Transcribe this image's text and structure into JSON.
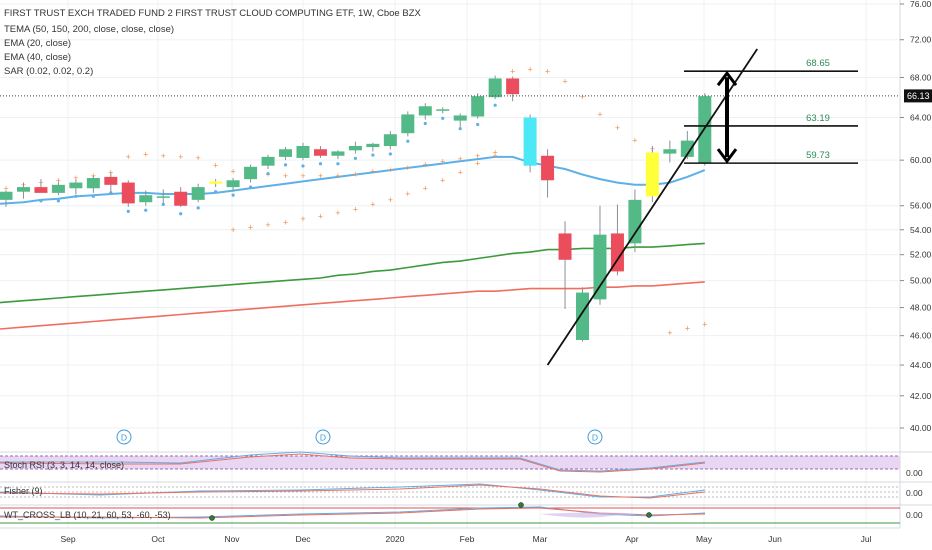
{
  "header": {
    "title": "FIRST TRUST EXCH TRADED FUND 2 FIRST TRUST CLOUD COMPUTING ETF, 1W, Cboe BZX",
    "indicators": [
      "TEMA (50, 150, 200, close, close, close)",
      "EMA (20, close)",
      "EMA (40, close)",
      "SAR (0.02, 0.02, 0.2)"
    ]
  },
  "price_axis": {
    "ticks": [
      "76.00",
      "72.00",
      "68.00",
      "64.00",
      "60.00",
      "56.00",
      "54.00",
      "52.00",
      "50.00",
      "48.00",
      "46.00",
      "44.00",
      "42.00",
      "40.00"
    ],
    "last_price": "66.13"
  },
  "time_axis": {
    "labels": [
      "Sep",
      "Oct",
      "Nov",
      "Dec",
      "2020",
      "Feb",
      "Mar",
      "Apr",
      "May",
      "Jun",
      "Jul"
    ]
  },
  "annotations": {
    "levels": [
      {
        "label": "68.65",
        "value": 68.65
      },
      {
        "label": "63.19",
        "value": 63.19
      },
      {
        "label": "59.73",
        "value": 59.73
      }
    ],
    "dividends": [
      "D",
      "D",
      "D"
    ]
  },
  "panes": [
    {
      "label": "Stoch RSI (3, 3, 14, 14, close)",
      "value": "0.00"
    },
    {
      "label": "Fisher (9)",
      "value": "0.00"
    },
    {
      "label": "WT_CROSS_LB (10, 21, 60, 53, -60, -53)",
      "value": "0.00"
    }
  ],
  "colors": {
    "up": "#53b987",
    "down": "#eb4d5c",
    "highlight_down": "#4de8f5",
    "highlight_up": "#ffff3a",
    "ema20": "#5db0e8",
    "ema40": "#3c9a3c",
    "ema_long": "#ef6f5f",
    "sar": "#f0904a"
  },
  "chart_data": {
    "type": "candlestick",
    "title": "FIRST TRUST EXCH TRADED FUND 2 FIRST TRUST CLOUD COMPUTING ETF, 1W, Cboe BZX",
    "y_scale": "log",
    "ylim": [
      39.0,
      77.0
    ],
    "candles": [
      {
        "o": 56.5,
        "h": 57.3,
        "l": 55.9,
        "c": 57.2
      },
      {
        "o": 57.2,
        "h": 58.0,
        "l": 56.6,
        "c": 57.6
      },
      {
        "o": 57.6,
        "h": 58.3,
        "l": 57.2,
        "c": 57.1
      },
      {
        "o": 57.1,
        "h": 58.1,
        "l": 56.9,
        "c": 57.8
      },
      {
        "o": 57.5,
        "h": 58.3,
        "l": 57.0,
        "c": 58.0
      },
      {
        "o": 57.5,
        "h": 58.6,
        "l": 57.1,
        "c": 58.4
      },
      {
        "o": 58.5,
        "h": 58.9,
        "l": 57.1,
        "c": 57.8
      },
      {
        "o": 58.0,
        "h": 58.2,
        "l": 55.9,
        "c": 56.2
      },
      {
        "o": 56.3,
        "h": 57.3,
        "l": 56.0,
        "c": 56.9
      },
      {
        "o": 56.8,
        "h": 57.4,
        "l": 56.2,
        "c": 56.8
      },
      {
        "o": 57.2,
        "h": 57.6,
        "l": 55.9,
        "c": 56.0
      },
      {
        "o": 56.5,
        "h": 57.9,
        "l": 56.3,
        "c": 57.6
      },
      {
        "o": 57.9,
        "h": 58.3,
        "l": 57.6,
        "c": 58.1,
        "hl": "yellow"
      },
      {
        "o": 57.6,
        "h": 58.4,
        "l": 57.2,
        "c": 58.2
      },
      {
        "o": 58.3,
        "h": 59.6,
        "l": 58.0,
        "c": 59.4
      },
      {
        "o": 59.5,
        "h": 60.5,
        "l": 59.2,
        "c": 60.3
      },
      {
        "o": 60.3,
        "h": 61.2,
        "l": 60.0,
        "c": 61.0
      },
      {
        "o": 60.2,
        "h": 61.6,
        "l": 60.0,
        "c": 61.3
      },
      {
        "o": 61.0,
        "h": 61.3,
        "l": 60.2,
        "c": 60.4
      },
      {
        "o": 60.4,
        "h": 60.9,
        "l": 60.1,
        "c": 60.8
      },
      {
        "o": 60.9,
        "h": 61.7,
        "l": 60.6,
        "c": 61.3
      },
      {
        "o": 61.2,
        "h": 61.6,
        "l": 60.8,
        "c": 61.5
      },
      {
        "o": 61.3,
        "h": 62.7,
        "l": 61.0,
        "c": 62.4
      },
      {
        "o": 62.5,
        "h": 64.6,
        "l": 62.2,
        "c": 64.3
      },
      {
        "o": 64.2,
        "h": 65.4,
        "l": 63.8,
        "c": 65.1
      },
      {
        "o": 64.7,
        "h": 65.0,
        "l": 64.4,
        "c": 64.8
      },
      {
        "o": 63.7,
        "h": 64.4,
        "l": 63.1,
        "c": 64.2
      },
      {
        "o": 64.1,
        "h": 66.4,
        "l": 63.9,
        "c": 66.1
      },
      {
        "o": 66.0,
        "h": 68.2,
        "l": 65.8,
        "c": 67.9
      },
      {
        "o": 67.9,
        "h": 68.1,
        "l": 65.6,
        "c": 66.3
      },
      {
        "o": 64.0,
        "h": 64.3,
        "l": 58.9,
        "c": 59.5,
        "hl": "cyan"
      },
      {
        "o": 60.4,
        "h": 61.0,
        "l": 56.7,
        "c": 58.2
      },
      {
        "o": 53.7,
        "h": 54.7,
        "l": 47.9,
        "c": 51.6
      },
      {
        "o": 45.7,
        "h": 49.5,
        "l": 45.6,
        "c": 49.1
      },
      {
        "o": 48.6,
        "h": 56.0,
        "l": 48.2,
        "c": 53.6
      },
      {
        "o": 53.7,
        "h": 56.1,
        "l": 50.4,
        "c": 50.7
      },
      {
        "o": 52.9,
        "h": 57.4,
        "l": 52.2,
        "c": 56.5
      },
      {
        "o": 56.8,
        "h": 61.3,
        "l": 56.3,
        "c": 60.7,
        "hl": "yellow"
      },
      {
        "o": 60.6,
        "h": 61.8,
        "l": 59.8,
        "c": 61.0
      },
      {
        "o": 60.3,
        "h": 62.7,
        "l": 60.1,
        "c": 61.8
      },
      {
        "o": 59.7,
        "h": 66.4,
        "l": 59.5,
        "c": 66.1
      }
    ],
    "series": [
      {
        "name": "EMA (20, close)",
        "values": [
          56.2,
          56.3,
          56.5,
          56.6,
          56.8,
          56.9,
          57.0,
          57.1,
          57.1,
          57.0,
          57.0,
          57.0,
          57.1,
          57.3,
          57.5,
          57.7,
          57.9,
          58.1,
          58.3,
          58.5,
          58.7,
          58.9,
          59.1,
          59.3,
          59.5,
          59.7,
          59.9,
          60.1,
          60.3,
          60.3,
          59.8,
          59.5,
          59.2,
          58.7,
          58.3,
          58.0,
          57.8,
          57.8,
          58.0,
          58.5,
          59.1
        ]
      },
      {
        "name": "EMA (40, close)",
        "values": [
          48.4,
          48.5,
          48.6,
          48.7,
          48.8,
          48.9,
          49.0,
          49.1,
          49.2,
          49.3,
          49.4,
          49.5,
          49.6,
          49.7,
          49.8,
          49.9,
          50.0,
          50.1,
          50.2,
          50.4,
          50.5,
          50.7,
          50.8,
          51.0,
          51.2,
          51.4,
          51.5,
          51.7,
          51.9,
          52.1,
          52.2,
          52.4,
          52.4,
          52.5,
          52.5,
          52.5,
          52.6,
          52.6,
          52.7,
          52.8,
          52.9
        ]
      },
      {
        "name": "TEMA (50, 150, 200, close, close, close)",
        "values": [
          46.5,
          46.6,
          46.7,
          46.8,
          46.9,
          47.0,
          47.1,
          47.2,
          47.3,
          47.4,
          47.5,
          47.6,
          47.7,
          47.8,
          47.9,
          48.0,
          48.1,
          48.2,
          48.3,
          48.4,
          48.5,
          48.6,
          48.7,
          48.8,
          48.9,
          49.0,
          49.1,
          49.2,
          49.2,
          49.3,
          49.4,
          49.4,
          49.4,
          49.4,
          49.5,
          49.5,
          49.6,
          49.6,
          49.7,
          49.8,
          49.9
        ]
      }
    ],
    "sar": [
      57.5,
      57.8,
      58.0,
      58.2,
      58.4,
      58.6,
      58.9,
      60.3,
      60.5,
      60.4,
      60.3,
      60.2,
      59.5,
      59.0,
      58.8,
      58.7,
      58.6,
      58.6,
      58.6,
      58.6,
      58.7,
      59.0,
      59.1,
      59.3,
      59.6,
      59.9,
      60.1,
      60.4,
      60.7,
      68.6,
      68.8,
      68.6,
      67.6,
      66.0,
      64.3,
      63.0,
      61.8,
      61.0,
      46.2,
      46.5,
      46.8
    ],
    "sar_lower": [
      null,
      null,
      null,
      null,
      null,
      null,
      null,
      null,
      null,
      null,
      null,
      null,
      null,
      54.0,
      54.2,
      54.4,
      54.6,
      54.9,
      55.1,
      55.4,
      55.7,
      56.1,
      56.5,
      57.0,
      57.5,
      58.2,
      58.9,
      59.7,
      60.4,
      null,
      null,
      null,
      null,
      null,
      null,
      null,
      null,
      null,
      null,
      null,
      null
    ],
    "levels": [
      68.65,
      63.19,
      59.73
    ],
    "trendline": [
      [
        31.0,
        44.0
      ],
      [
        43.0,
        71.0
      ]
    ],
    "x_labels": [
      "Sep",
      "Oct",
      "Nov",
      "Dec",
      "2020",
      "Feb",
      "Mar",
      "Apr",
      "May",
      "Jun",
      "Jul"
    ],
    "last_price": 66.13
  }
}
